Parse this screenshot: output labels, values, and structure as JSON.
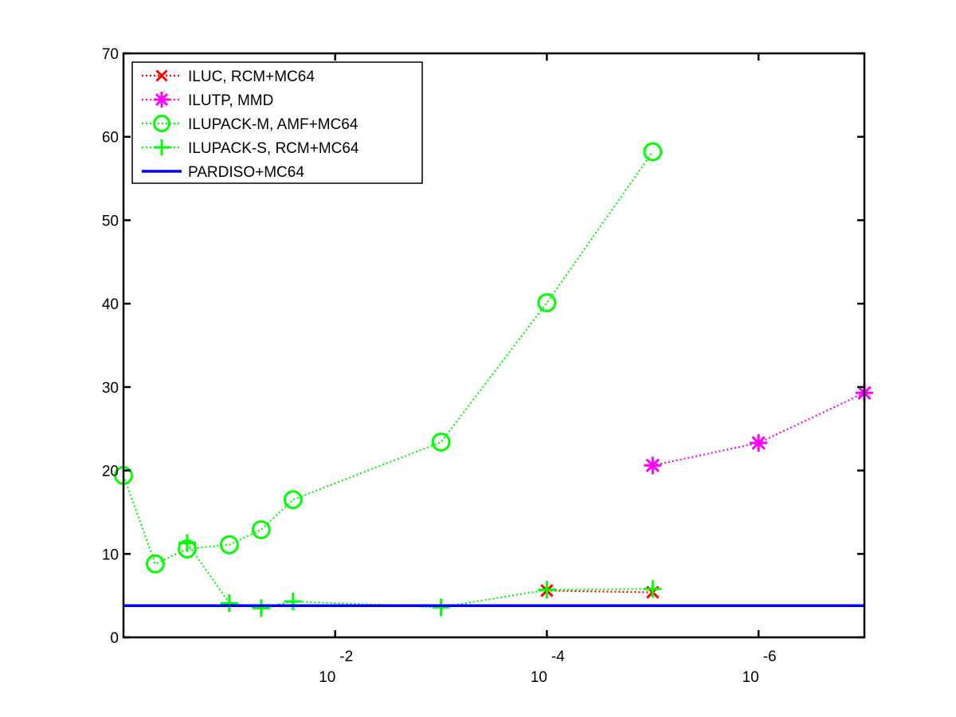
{
  "chart_data": {
    "type": "line",
    "title": "",
    "xlabel": "",
    "ylabel": "",
    "x_scale": "log",
    "x_reversed": true,
    "xlim": [
      1,
      1e-07
    ],
    "ylim": [
      0,
      70
    ],
    "y_ticks": [
      0,
      10,
      20,
      30,
      40,
      50,
      60,
      70
    ],
    "y_tick_labels": [
      "0",
      "10",
      "20",
      "30",
      "40",
      "50",
      "60",
      "70"
    ],
    "x_ticks": [
      {
        "value": 0.01,
        "base": "10",
        "exponent": "-2"
      },
      {
        "value": 0.0001,
        "base": "10",
        "exponent": "-4"
      },
      {
        "value": 1e-06,
        "base": "10",
        "exponent": "-6"
      }
    ],
    "grid": false,
    "legend_position": "top-left",
    "series": [
      {
        "name": "ILUC, RCM+MC64",
        "color": "#ff0000",
        "marker": "x",
        "line": "dotted",
        "x": [
          0.0001,
          1e-05
        ],
        "y": [
          5.6,
          5.4
        ]
      },
      {
        "name": "ILUTP, MMD",
        "color": "#ff00ff",
        "marker": "asterisk",
        "line": "dotted",
        "x": [
          1e-05,
          1e-06,
          1e-07
        ],
        "y": [
          20.6,
          23.3,
          29.3
        ]
      },
      {
        "name": "ILUPACK-M, AMF+MC64",
        "color": "#00ff00",
        "marker": "circle",
        "line": "dotted",
        "x": [
          1,
          0.5,
          0.25,
          0.1,
          0.05,
          0.025,
          0.001,
          0.0001,
          1e-05
        ],
        "y": [
          19.4,
          8.8,
          10.6,
          11.1,
          12.9,
          16.5,
          23.4,
          40.1,
          58.2
        ]
      },
      {
        "name": "ILUPACK-S, RCM+MC64",
        "color": "#00ff00",
        "marker": "plus",
        "line": "dotted",
        "x": [
          0.25,
          0.1,
          0.05,
          0.025,
          0.001,
          0.0001,
          1e-05
        ],
        "y": [
          11.3,
          4.1,
          3.5,
          4.3,
          3.6,
          5.7,
          5.8
        ]
      },
      {
        "name": "PARDISO+MC64",
        "color": "#0000ff",
        "marker": "none",
        "line": "solid",
        "x": [
          1,
          1e-07
        ],
        "y": [
          3.8,
          3.8
        ]
      }
    ]
  }
}
